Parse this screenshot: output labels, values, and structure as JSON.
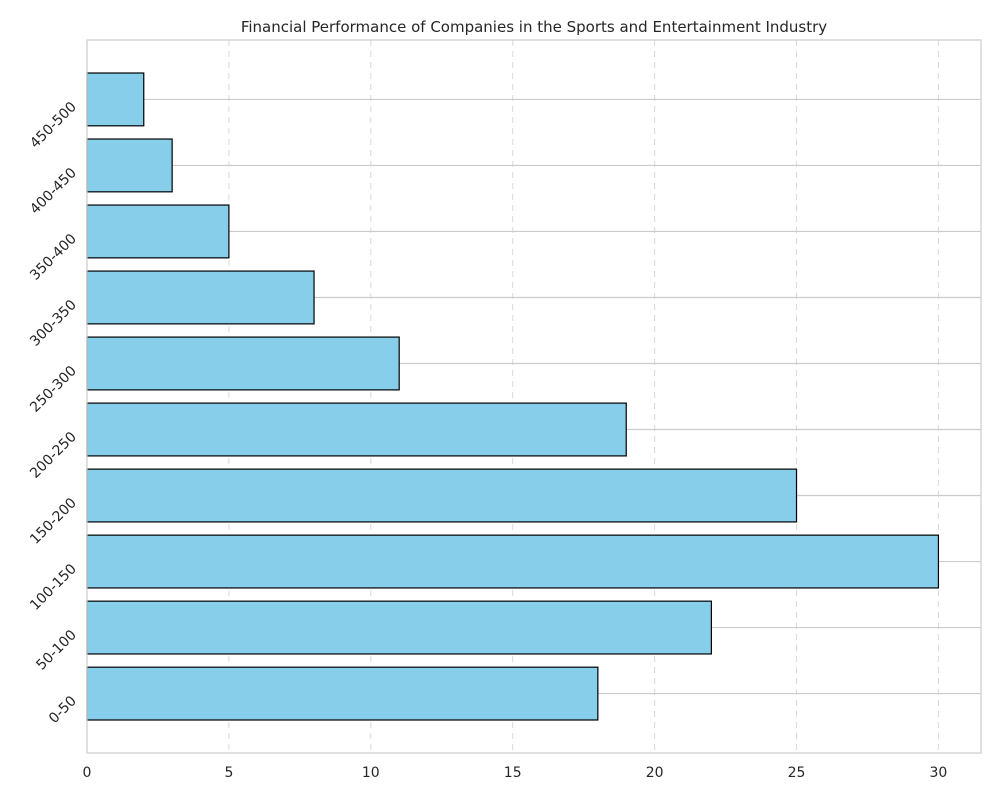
{
  "chart_data": {
    "type": "bar",
    "orientation": "horizontal",
    "title": "Financial Performance of Companies in the Sports and Entertainment Industry",
    "xlabel": "",
    "ylabel": "",
    "categories": [
      "0-50",
      "50-100",
      "100-150",
      "150-200",
      "200-250",
      "250-300",
      "300-350",
      "350-400",
      "400-450",
      "450-500"
    ],
    "values": [
      18,
      22,
      30,
      25,
      19,
      11,
      8,
      5,
      3,
      2
    ],
    "xlim": [
      0,
      31.5
    ],
    "xticks": [
      0,
      5,
      10,
      15,
      20,
      25,
      30
    ],
    "grid": "on",
    "bar_color": "#87CEEB",
    "bar_edge_color": "#000000",
    "grid_color": "#cccccc"
  }
}
